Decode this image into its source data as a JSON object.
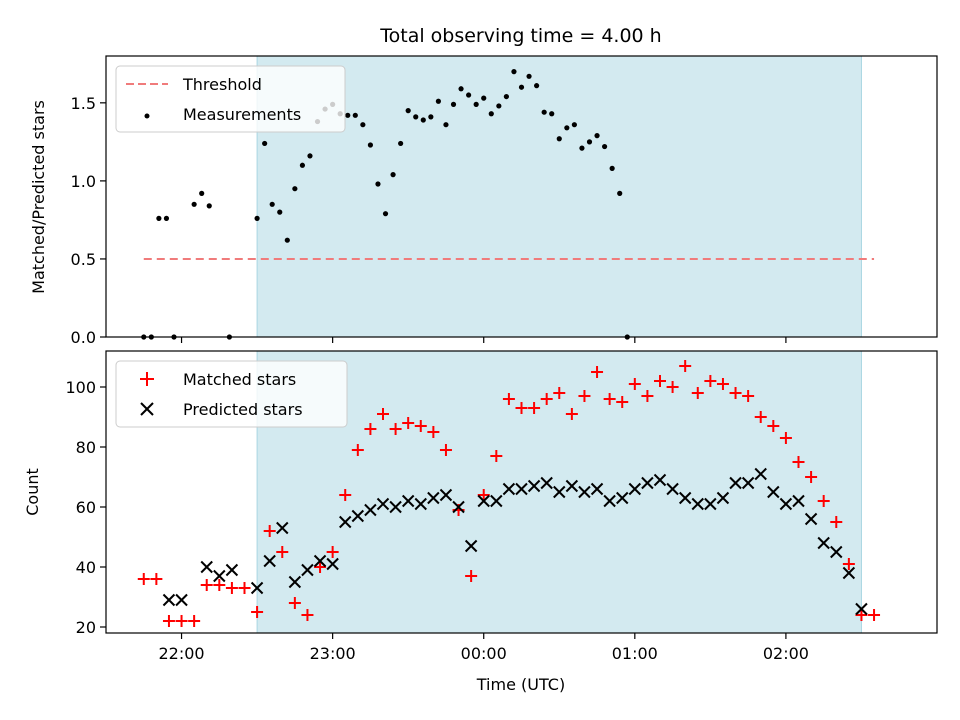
{
  "chart_data": [
    {
      "type": "scatter",
      "title": "Total observing time = 4.00 h",
      "ylabel": "Matched/Predicted stars",
      "xlabel": "",
      "xlim": [
        "21:30",
        "03:00"
      ],
      "ylim": [
        0,
        1.8
      ],
      "yticks": [
        0.0,
        0.5,
        1.0,
        1.5
      ],
      "ytick_labels": [
        "0.0",
        "0.5",
        "1.0",
        "1.5"
      ],
      "shaded_span": {
        "from": "22:30",
        "to": "02:30",
        "color": "#d3eaf0"
      },
      "grid": false,
      "legend_position": "top-left",
      "threshold": {
        "name": "Threshold",
        "value": 0.5,
        "from": "21:45",
        "to": "02:35",
        "color": "#f07b7b",
        "style": "dashed"
      },
      "series": [
        {
          "name": "Measurements",
          "color": "#000000",
          "marker": "dot",
          "points": [
            [
              "21:45",
              0.0
            ],
            [
              "21:48",
              0.0
            ],
            [
              "21:51",
              0.76
            ],
            [
              "21:54",
              0.76
            ],
            [
              "21:57",
              0.0
            ],
            [
              "22:05",
              0.85
            ],
            [
              "22:08",
              0.92
            ],
            [
              "22:11",
              0.84
            ],
            [
              "22:19",
              0.0
            ],
            [
              "22:30",
              0.76
            ],
            [
              "22:33",
              1.24
            ],
            [
              "22:36",
              0.85
            ],
            [
              "22:39",
              0.8
            ],
            [
              "22:42",
              0.62
            ],
            [
              "22:45",
              0.95
            ],
            [
              "22:48",
              1.1
            ],
            [
              "22:51",
              1.16
            ],
            [
              "22:54",
              1.38
            ],
            [
              "22:57",
              1.46
            ],
            [
              "23:00",
              1.49
            ],
            [
              "23:03",
              1.43
            ],
            [
              "23:06",
              1.42
            ],
            [
              "23:09",
              1.42
            ],
            [
              "23:12",
              1.36
            ],
            [
              "23:15",
              1.23
            ],
            [
              "23:18",
              0.98
            ],
            [
              "23:21",
              0.79
            ],
            [
              "23:24",
              1.04
            ],
            [
              "23:27",
              1.24
            ],
            [
              "23:30",
              1.45
            ],
            [
              "23:33",
              1.41
            ],
            [
              "23:36",
              1.39
            ],
            [
              "23:39",
              1.41
            ],
            [
              "23:42",
              1.51
            ],
            [
              "23:45",
              1.36
            ],
            [
              "23:48",
              1.49
            ],
            [
              "23:51",
              1.59
            ],
            [
              "23:54",
              1.55
            ],
            [
              "23:57",
              1.49
            ],
            [
              "00:00",
              1.53
            ],
            [
              "00:03",
              1.43
            ],
            [
              "00:06",
              1.48
            ],
            [
              "00:09",
              1.54
            ],
            [
              "00:12",
              1.7
            ],
            [
              "00:15",
              1.6
            ],
            [
              "00:18",
              1.67
            ],
            [
              "00:21",
              1.61
            ],
            [
              "00:24",
              1.44
            ],
            [
              "00:27",
              1.43
            ],
            [
              "00:30",
              1.27
            ],
            [
              "00:33",
              1.34
            ],
            [
              "00:36",
              1.36
            ],
            [
              "00:39",
              1.21
            ],
            [
              "00:42",
              1.25
            ],
            [
              "00:45",
              1.29
            ],
            [
              "00:48",
              1.22
            ],
            [
              "00:51",
              1.08
            ],
            [
              "00:54",
              0.92
            ],
            [
              "00:57",
              0.0
            ]
          ]
        }
      ]
    },
    {
      "type": "scatter",
      "title": "",
      "ylabel": "Count",
      "xlabel": "Time (UTC)",
      "xlim": [
        "21:30",
        "03:00"
      ],
      "ylim": [
        18,
        112
      ],
      "yticks": [
        20,
        40,
        60,
        80,
        100
      ],
      "ytick_labels": [
        "20",
        "40",
        "60",
        "80",
        "100"
      ],
      "xticks": [
        "22:00",
        "23:00",
        "00:00",
        "01:00",
        "02:00"
      ],
      "xtick_labels": [
        "22:00",
        "23:00",
        "00:00",
        "01:00",
        "02:00"
      ],
      "shaded_span": {
        "from": "22:30",
        "to": "02:30",
        "color": "#d3eaf0"
      },
      "grid": false,
      "legend_position": "top-left",
      "series": [
        {
          "name": "Matched stars",
          "color": "#ff0000",
          "marker": "plus",
          "points": [
            [
              "21:45",
              36
            ],
            [
              "21:50",
              36
            ],
            [
              "21:55",
              22
            ],
            [
              "22:00",
              22
            ],
            [
              "22:05",
              22
            ],
            [
              "22:10",
              34
            ],
            [
              "22:15",
              34
            ],
            [
              "22:20",
              33
            ],
            [
              "22:25",
              33
            ],
            [
              "22:30",
              25
            ],
            [
              "22:35",
              52
            ],
            [
              "22:40",
              45
            ],
            [
              "22:45",
              28
            ],
            [
              "22:50",
              24
            ],
            [
              "22:55",
              40
            ],
            [
              "23:00",
              45
            ],
            [
              "23:05",
              64
            ],
            [
              "23:10",
              79
            ],
            [
              "23:15",
              86
            ],
            [
              "23:20",
              91
            ],
            [
              "23:25",
              86
            ],
            [
              "23:30",
              88
            ],
            [
              "23:35",
              87
            ],
            [
              "23:40",
              85
            ],
            [
              "23:45",
              79
            ],
            [
              "23:50",
              59
            ],
            [
              "23:55",
              37
            ],
            [
              "00:00",
              64
            ],
            [
              "00:05",
              77
            ],
            [
              "00:10",
              96
            ],
            [
              "00:15",
              93
            ],
            [
              "00:20",
              93
            ],
            [
              "00:25",
              96
            ],
            [
              "00:30",
              98
            ],
            [
              "00:35",
              91
            ],
            [
              "00:40",
              97
            ],
            [
              "00:45",
              105
            ],
            [
              "00:50",
              96
            ],
            [
              "00:55",
              95
            ],
            [
              "01:00",
              101
            ],
            [
              "01:05",
              97
            ],
            [
              "01:10",
              102
            ],
            [
              "01:15",
              100
            ],
            [
              "01:20",
              107
            ],
            [
              "01:25",
              98
            ],
            [
              "01:30",
              102
            ],
            [
              "01:35",
              101
            ],
            [
              "01:40",
              98
            ],
            [
              "01:45",
              97
            ],
            [
              "01:50",
              90
            ],
            [
              "01:55",
              87
            ],
            [
              "02:00",
              83
            ],
            [
              "02:05",
              75
            ],
            [
              "02:10",
              70
            ],
            [
              "02:15",
              62
            ],
            [
              "02:20",
              55
            ],
            [
              "02:25",
              41
            ],
            [
              "02:30",
              24
            ],
            [
              "02:35",
              24
            ]
          ]
        },
        {
          "name": "Predicted stars",
          "color": "#000000",
          "marker": "cross",
          "points": [
            [
              "21:55",
              29
            ],
            [
              "22:00",
              29
            ],
            [
              "22:10",
              40
            ],
            [
              "22:15",
              37
            ],
            [
              "22:20",
              39
            ],
            [
              "22:30",
              33
            ],
            [
              "22:35",
              42
            ],
            [
              "22:40",
              53
            ],
            [
              "22:45",
              35
            ],
            [
              "22:50",
              39
            ],
            [
              "22:55",
              42
            ],
            [
              "23:00",
              41
            ],
            [
              "23:05",
              55
            ],
            [
              "23:10",
              57
            ],
            [
              "23:15",
              59
            ],
            [
              "23:20",
              61
            ],
            [
              "23:25",
              60
            ],
            [
              "23:30",
              62
            ],
            [
              "23:35",
              61
            ],
            [
              "23:40",
              63
            ],
            [
              "23:45",
              64
            ],
            [
              "23:50",
              60
            ],
            [
              "23:55",
              47
            ],
            [
              "00:00",
              62
            ],
            [
              "00:05",
              62
            ],
            [
              "00:10",
              66
            ],
            [
              "00:15",
              66
            ],
            [
              "00:20",
              67
            ],
            [
              "00:25",
              68
            ],
            [
              "00:30",
              65
            ],
            [
              "00:35",
              67
            ],
            [
              "00:40",
              65
            ],
            [
              "00:45",
              66
            ],
            [
              "00:50",
              62
            ],
            [
              "00:55",
              63
            ],
            [
              "01:00",
              66
            ],
            [
              "01:05",
              68
            ],
            [
              "01:10",
              69
            ],
            [
              "01:15",
              66
            ],
            [
              "01:20",
              63
            ],
            [
              "01:25",
              61
            ],
            [
              "01:30",
              61
            ],
            [
              "01:35",
              63
            ],
            [
              "01:40",
              68
            ],
            [
              "01:45",
              68
            ],
            [
              "01:50",
              71
            ],
            [
              "01:55",
              65
            ],
            [
              "02:00",
              61
            ],
            [
              "02:05",
              62
            ],
            [
              "02:10",
              56
            ],
            [
              "02:15",
              48
            ],
            [
              "02:20",
              45
            ],
            [
              "02:25",
              38
            ],
            [
              "02:30",
              26
            ]
          ]
        }
      ]
    }
  ]
}
